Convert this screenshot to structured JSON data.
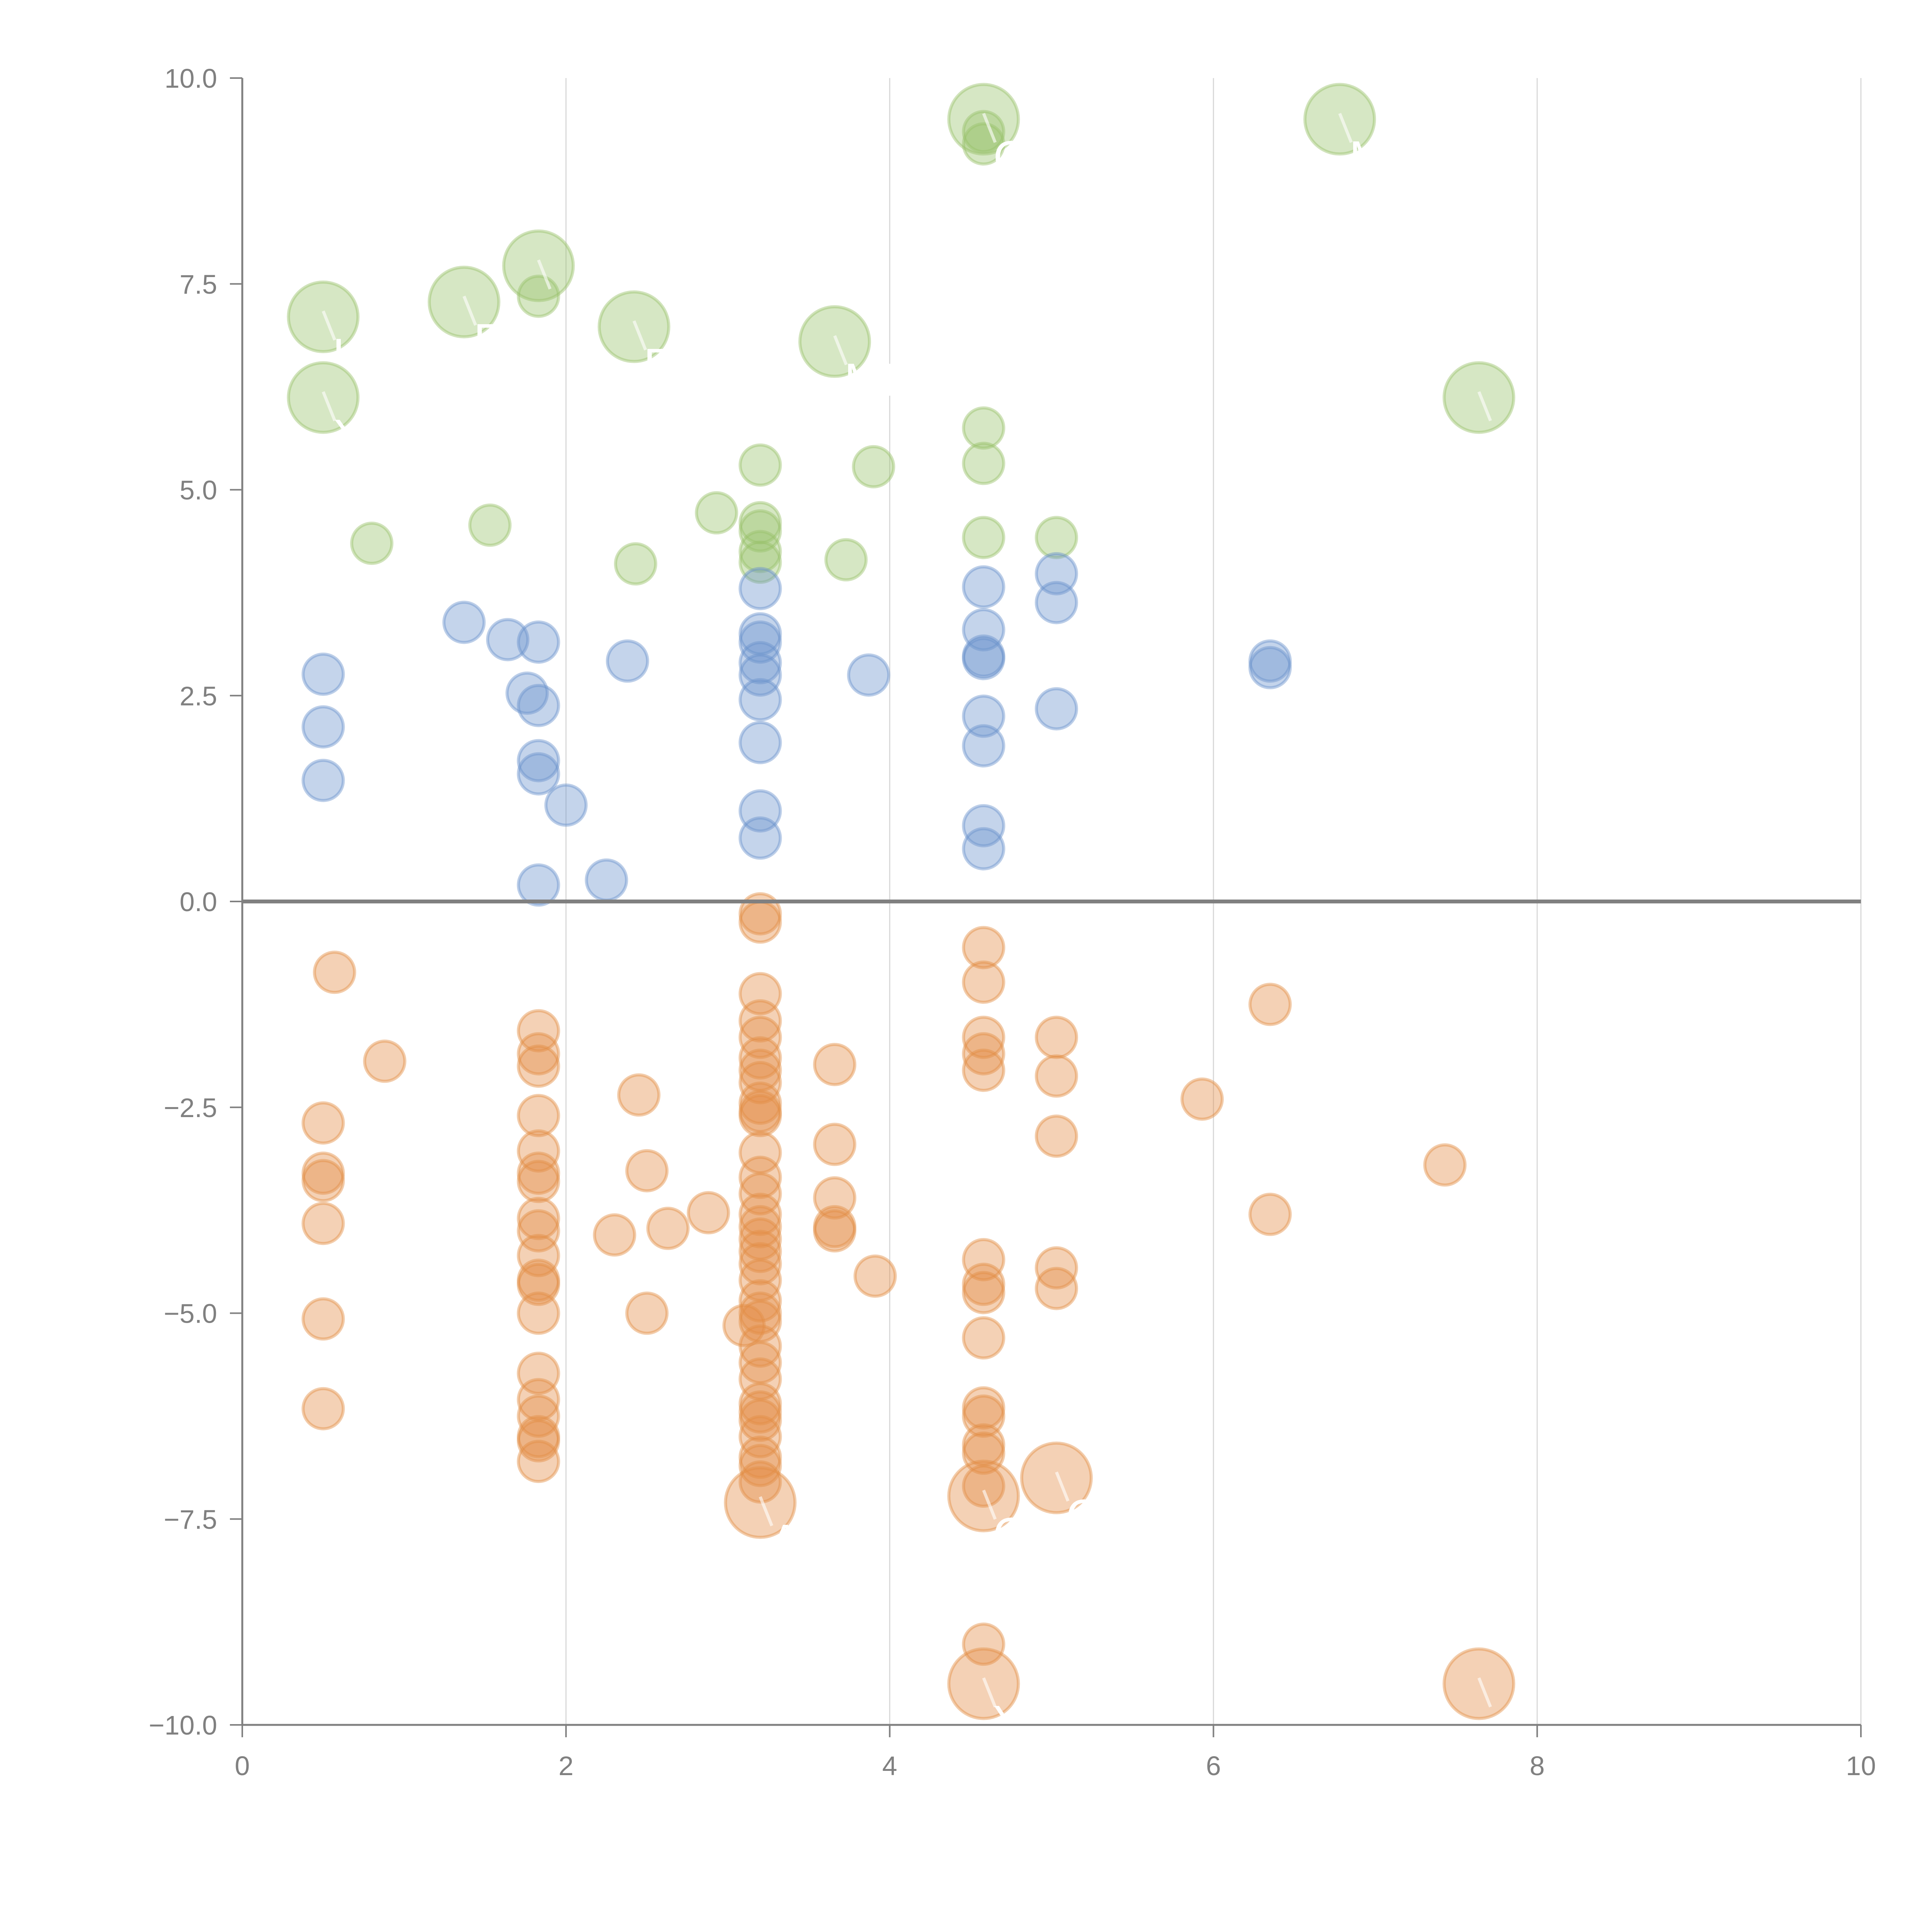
{
  "chart_data": {
    "type": "scatter",
    "title": "",
    "xlabel": "",
    "ylabel": "",
    "xlim": [
      0,
      10
    ],
    "ylim": [
      -10,
      10
    ],
    "x_ticks": [
      "0",
      "2",
      "4",
      "6",
      "8",
      "10"
    ],
    "y_ticks": [
      "10.0",
      "7.5",
      "5.0",
      "2.5",
      "0.0",
      "−2.5",
      "−5.0",
      "−7.5",
      "−10.0"
    ],
    "grid": "vertical",
    "legend": "none",
    "colors": {
      "green": "#98c26b",
      "blue": "#6b93cc",
      "orange": "#e38d45"
    },
    "series": [
      {
        "name": "green",
        "points": [
          [
            0.8,
            4.35
          ],
          [
            1.53,
            4.57
          ],
          [
            2.43,
            4.1
          ],
          [
            2.93,
            4.72
          ],
          [
            3.2,
            5.3
          ],
          [
            3.2,
            4.6
          ],
          [
            3.2,
            4.5
          ],
          [
            3.2,
            4.25
          ],
          [
            3.2,
            4.12
          ],
          [
            3.73,
            4.15
          ],
          [
            3.9,
            5.28
          ],
          [
            4.58,
            5.75
          ],
          [
            4.58,
            5.32
          ],
          [
            4.58,
            4.42
          ],
          [
            5.03,
            4.42
          ],
          [
            1.83,
            7.35
          ],
          [
            4.58,
            9.35
          ],
          [
            4.58,
            9.2
          ]
        ]
      },
      {
        "name": "blue",
        "points": [
          [
            0.5,
            2.76
          ],
          [
            0.5,
            2.12
          ],
          [
            0.5,
            1.47
          ],
          [
            1.37,
            3.39
          ],
          [
            1.64,
            3.18
          ],
          [
            1.83,
            3.15
          ],
          [
            1.76,
            2.53
          ],
          [
            1.83,
            2.38
          ],
          [
            1.83,
            1.71
          ],
          [
            1.83,
            1.55
          ],
          [
            2.0,
            1.17
          ],
          [
            1.83,
            0.2
          ],
          [
            2.25,
            0.26
          ],
          [
            2.38,
            2.92
          ],
          [
            3.2,
            3.8
          ],
          [
            3.2,
            3.25
          ],
          [
            3.2,
            3.15
          ],
          [
            3.2,
            2.9
          ],
          [
            3.2,
            2.75
          ],
          [
            3.2,
            2.45
          ],
          [
            3.2,
            1.93
          ],
          [
            3.2,
            1.1
          ],
          [
            3.2,
            0.77
          ],
          [
            3.87,
            2.75
          ],
          [
            4.58,
            3.82
          ],
          [
            4.58,
            3.3
          ],
          [
            4.58,
            2.98
          ],
          [
            4.58,
            2.95
          ],
          [
            4.58,
            2.25
          ],
          [
            4.58,
            1.89
          ],
          [
            4.58,
            0.92
          ],
          [
            4.58,
            0.64
          ],
          [
            5.03,
            3.98
          ],
          [
            5.03,
            3.63
          ],
          [
            5.03,
            2.34
          ],
          [
            6.35,
            2.92
          ],
          [
            6.35,
            2.84
          ]
        ]
      },
      {
        "name": "orange",
        "points": [
          [
            0.57,
            -0.86
          ],
          [
            0.88,
            -1.94
          ],
          [
            0.5,
            -2.69
          ],
          [
            0.5,
            -3.3
          ],
          [
            0.5,
            -3.39
          ],
          [
            0.5,
            -3.91
          ],
          [
            0.5,
            -5.07
          ],
          [
            0.5,
            -6.16
          ],
          [
            1.83,
            -1.57
          ],
          [
            1.83,
            -1.85
          ],
          [
            1.83,
            -2.0
          ],
          [
            1.83,
            -2.6
          ],
          [
            1.83,
            -3.03
          ],
          [
            1.83,
            -3.3
          ],
          [
            1.83,
            -3.4
          ],
          [
            1.83,
            -3.85
          ],
          [
            1.83,
            -4.0
          ],
          [
            1.83,
            -4.3
          ],
          [
            1.83,
            -4.6
          ],
          [
            1.83,
            -4.65
          ],
          [
            1.83,
            -5.0
          ],
          [
            1.83,
            -5.73
          ],
          [
            1.83,
            -6.05
          ],
          [
            1.83,
            -6.25
          ],
          [
            1.83,
            -6.5
          ],
          [
            1.83,
            -6.55
          ],
          [
            1.83,
            -6.8
          ],
          [
            2.3,
            -4.05
          ],
          [
            2.45,
            -2.35
          ],
          [
            2.5,
            -3.27
          ],
          [
            2.5,
            -5.0
          ],
          [
            2.63,
            -3.97
          ],
          [
            2.88,
            -3.78
          ],
          [
            3.1,
            -5.15
          ],
          [
            3.2,
            -0.15
          ],
          [
            3.2,
            -0.25
          ],
          [
            3.2,
            -1.12
          ],
          [
            3.2,
            -1.45
          ],
          [
            3.2,
            -1.65
          ],
          [
            3.2,
            -1.9
          ],
          [
            3.2,
            -2.05
          ],
          [
            3.2,
            -2.2
          ],
          [
            3.2,
            -2.45
          ],
          [
            3.2,
            -2.55
          ],
          [
            3.2,
            -2.6
          ],
          [
            3.2,
            -3.05
          ],
          [
            3.2,
            -3.35
          ],
          [
            3.2,
            -3.55
          ],
          [
            3.2,
            -3.8
          ],
          [
            3.2,
            -3.95
          ],
          [
            3.2,
            -4.1
          ],
          [
            3.2,
            -4.25
          ],
          [
            3.2,
            -4.4
          ],
          [
            3.2,
            -4.6
          ],
          [
            3.2,
            -4.85
          ],
          [
            3.2,
            -5.0
          ],
          [
            3.2,
            -5.1
          ],
          [
            3.2,
            -5.4
          ],
          [
            3.2,
            -5.6
          ],
          [
            3.2,
            -5.8
          ],
          [
            3.2,
            -6.1
          ],
          [
            3.2,
            -6.2
          ],
          [
            3.2,
            -6.3
          ],
          [
            3.2,
            -6.5
          ],
          [
            3.2,
            -6.75
          ],
          [
            3.2,
            -6.85
          ],
          [
            3.2,
            -7.05
          ],
          [
            3.66,
            -1.98
          ],
          [
            3.66,
            -2.95
          ],
          [
            3.66,
            -3.6
          ],
          [
            3.66,
            -3.95
          ],
          [
            3.66,
            -4.0
          ],
          [
            3.91,
            -4.55
          ],
          [
            4.58,
            -0.56
          ],
          [
            4.58,
            -0.98
          ],
          [
            4.58,
            -1.65
          ],
          [
            4.58,
            -1.85
          ],
          [
            4.58,
            -2.05
          ],
          [
            4.58,
            -4.35
          ],
          [
            4.58,
            -4.65
          ],
          [
            4.58,
            -4.75
          ],
          [
            4.58,
            -5.3
          ],
          [
            4.58,
            -6.15
          ],
          [
            4.58,
            -6.25
          ],
          [
            4.58,
            -6.6
          ],
          [
            4.58,
            -6.7
          ],
          [
            4.58,
            -7.1
          ],
          [
            4.58,
            -9.02
          ],
          [
            5.03,
            -1.65
          ],
          [
            5.03,
            -2.12
          ],
          [
            5.03,
            -2.85
          ],
          [
            5.03,
            -4.45
          ],
          [
            5.03,
            -4.7
          ],
          [
            5.93,
            -2.4
          ],
          [
            6.35,
            -1.25
          ],
          [
            6.35,
            -3.8
          ],
          [
            7.43,
            -3.2
          ]
        ]
      }
    ],
    "bubbles": [
      {
        "series": "green",
        "x": 0.5,
        "y": 7.1,
        "label": "U"
      },
      {
        "series": "green",
        "x": 0.5,
        "y": 6.12,
        "label": "XD"
      },
      {
        "series": "green",
        "x": 1.37,
        "y": 7.28,
        "label": "E"
      },
      {
        "series": "green",
        "x": 1.83,
        "y": 7.72,
        "label": ""
      },
      {
        "series": "green",
        "x": 2.42,
        "y": 6.98,
        "label": "F"
      },
      {
        "series": "green",
        "x": 3.66,
        "y": 6.8,
        "label": "ME"
      },
      {
        "series": "green",
        "x": 4.58,
        "y": 9.5,
        "label": "C"
      },
      {
        "series": "green",
        "x": 6.78,
        "y": 9.5,
        "label": "M"
      },
      {
        "series": "green",
        "x": 7.64,
        "y": 6.12,
        "label": ""
      },
      {
        "series": "orange",
        "x": 3.2,
        "y": -7.3,
        "label": "A"
      },
      {
        "series": "orange",
        "x": 4.58,
        "y": -7.22,
        "label": "O"
      },
      {
        "series": "orange",
        "x": 5.03,
        "y": -7.0,
        "label": "C"
      },
      {
        "series": "orange",
        "x": 4.58,
        "y": -9.5,
        "label": "Y"
      },
      {
        "series": "orange",
        "x": 7.64,
        "y": -9.5,
        "label": ""
      }
    ]
  }
}
